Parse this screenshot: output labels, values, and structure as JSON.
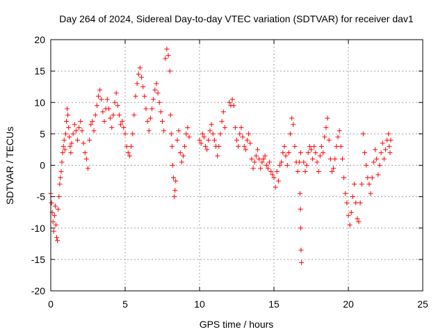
{
  "chart_data": {
    "type": "scatter",
    "title": "Day 264 of 2024, Sidereal Day-to-day VTEC variation (SDTVAR) for receiver dav1",
    "xlabel": "GPS time / hours",
    "ylabel": "SDTVAR / TECUs",
    "xlim": [
      0,
      25
    ],
    "ylim": [
      -20,
      20
    ],
    "xticks": [
      0,
      5,
      10,
      15,
      20,
      25
    ],
    "yticks": [
      -20,
      -15,
      -10,
      -5,
      0,
      5,
      10,
      15,
      20
    ],
    "xtick_labels": [
      "0",
      "5",
      "10",
      "15",
      "20",
      "25"
    ],
    "ytick_labels": [
      "-20",
      "-15",
      "-10",
      "-5",
      "0",
      "5",
      "10",
      "15",
      "20"
    ],
    "grid": true,
    "marker": "plus",
    "marker_color": "#ff0000",
    "series": [
      {
        "name": "dav1",
        "points": [
          [
            0.0,
            -4.5
          ],
          [
            0.05,
            -6.0
          ],
          [
            0.1,
            -7.5
          ],
          [
            0.15,
            -9.0
          ],
          [
            0.2,
            -10.5
          ],
          [
            0.25,
            -8.0
          ],
          [
            0.3,
            -6.5
          ],
          [
            0.35,
            -9.5
          ],
          [
            0.4,
            -11.5
          ],
          [
            0.45,
            -12.0
          ],
          [
            0.5,
            -7.0
          ],
          [
            0.55,
            -5.0
          ],
          [
            0.6,
            -3.0
          ],
          [
            0.65,
            -2.0
          ],
          [
            0.7,
            -1.0
          ],
          [
            0.75,
            0.5
          ],
          [
            0.8,
            2.0
          ],
          [
            0.85,
            3.0
          ],
          [
            0.9,
            4.0
          ],
          [
            0.95,
            2.5
          ],
          [
            1.0,
            5.0
          ],
          [
            1.05,
            7.0
          ],
          [
            1.1,
            9.0
          ],
          [
            1.15,
            8.0
          ],
          [
            1.2,
            6.0
          ],
          [
            1.25,
            4.5
          ],
          [
            1.3,
            3.0
          ],
          [
            1.35,
            2.0
          ],
          [
            1.4,
            3.5
          ],
          [
            1.5,
            5.0
          ],
          [
            1.6,
            6.5
          ],
          [
            1.7,
            5.5
          ],
          [
            1.8,
            4.0
          ],
          [
            1.9,
            6.0
          ],
          [
            2.0,
            7.0
          ],
          [
            2.1,
            5.5
          ],
          [
            2.2,
            3.5
          ],
          [
            2.3,
            2.0
          ],
          [
            2.4,
            1.0
          ],
          [
            2.5,
            -0.5
          ],
          [
            2.6,
            4.0
          ],
          [
            2.7,
            6.5
          ],
          [
            2.8,
            7.0
          ],
          [
            2.9,
            5.5
          ],
          [
            3.0,
            8.0
          ],
          [
            3.1,
            9.5
          ],
          [
            3.2,
            11.0
          ],
          [
            3.3,
            12.0
          ],
          [
            3.4,
            10.5
          ],
          [
            3.5,
            8.5
          ],
          [
            3.6,
            7.0
          ],
          [
            3.7,
            9.0
          ],
          [
            3.8,
            10.5
          ],
          [
            3.9,
            9.0
          ],
          [
            4.0,
            7.5
          ],
          [
            4.1,
            6.0
          ],
          [
            4.2,
            8.0
          ],
          [
            4.3,
            10.0
          ],
          [
            4.4,
            11.5
          ],
          [
            4.5,
            9.5
          ],
          [
            4.6,
            8.0
          ],
          [
            4.7,
            6.5
          ],
          [
            4.8,
            7.0
          ],
          [
            4.9,
            6.0
          ],
          [
            5.0,
            5.0
          ],
          [
            5.1,
            3.0
          ],
          [
            5.2,
            2.0
          ],
          [
            5.3,
            1.5
          ],
          [
            5.4,
            3.0
          ],
          [
            5.5,
            5.0
          ],
          [
            5.6,
            8.0
          ],
          [
            5.7,
            11.0
          ],
          [
            5.8,
            13.0
          ],
          [
            5.9,
            14.5
          ],
          [
            6.0,
            15.5
          ],
          [
            6.1,
            14.0
          ],
          [
            6.2,
            12.5
          ],
          [
            6.3,
            11.0
          ],
          [
            6.4,
            9.0
          ],
          [
            6.5,
            7.0
          ],
          [
            6.6,
            5.5
          ],
          [
            6.7,
            7.5
          ],
          [
            6.8,
            9.0
          ],
          [
            6.9,
            10.5
          ],
          [
            7.0,
            12.0
          ],
          [
            7.1,
            13.0
          ],
          [
            7.2,
            11.5
          ],
          [
            7.3,
            10.0
          ],
          [
            7.4,
            8.5
          ],
          [
            7.5,
            7.0
          ],
          [
            7.6,
            5.5
          ],
          [
            7.7,
            17.0
          ],
          [
            7.8,
            18.5
          ],
          [
            7.9,
            17.5
          ],
          [
            8.0,
            15.0
          ],
          [
            8.05,
            8.0
          ],
          [
            8.1,
            5.0
          ],
          [
            8.15,
            3.0
          ],
          [
            8.2,
            0.0
          ],
          [
            8.25,
            -2.0
          ],
          [
            8.3,
            -5.0
          ],
          [
            8.35,
            -4.0
          ],
          [
            8.4,
            -2.5
          ],
          [
            8.5,
            4.0
          ],
          [
            8.6,
            5.5
          ],
          [
            8.7,
            2.0
          ],
          [
            8.8,
            0.5
          ],
          [
            8.9,
            1.5
          ],
          [
            9.0,
            3.0
          ],
          [
            9.1,
            5.0
          ],
          [
            9.2,
            6.0
          ],
          [
            9.3,
            4.5
          ],
          [
            10.0,
            4.0
          ],
          [
            10.1,
            3.5
          ],
          [
            10.2,
            5.0
          ],
          [
            10.3,
            4.5
          ],
          [
            10.4,
            3.0
          ],
          [
            10.5,
            2.5
          ],
          [
            10.6,
            4.0
          ],
          [
            10.7,
            5.5
          ],
          [
            10.8,
            6.5
          ],
          [
            10.9,
            5.0
          ],
          [
            11.0,
            4.0
          ],
          [
            11.1,
            3.0
          ],
          [
            11.2,
            1.5
          ],
          [
            11.3,
            3.0
          ],
          [
            11.4,
            5.0
          ],
          [
            11.5,
            7.0
          ],
          [
            11.6,
            8.5
          ],
          [
            11.7,
            6.0
          ],
          [
            12.0,
            10.0
          ],
          [
            12.1,
            9.5
          ],
          [
            12.2,
            10.5
          ],
          [
            12.3,
            9.5
          ],
          [
            12.4,
            6.0
          ],
          [
            12.5,
            4.0
          ],
          [
            12.6,
            3.0
          ],
          [
            12.7,
            5.0
          ],
          [
            12.8,
            6.0
          ],
          [
            12.9,
            4.5
          ],
          [
            13.0,
            3.0
          ],
          [
            13.1,
            2.5
          ],
          [
            13.2,
            4.0
          ],
          [
            13.3,
            5.0
          ],
          [
            13.4,
            3.5
          ],
          [
            13.5,
            1.0
          ],
          [
            13.6,
            -0.5
          ],
          [
            13.7,
            0.5
          ],
          [
            13.8,
            1.5
          ],
          [
            13.9,
            2.5
          ],
          [
            14.0,
            1.0
          ],
          [
            14.1,
            -0.5
          ],
          [
            14.2,
            0.5
          ],
          [
            14.3,
            1.0
          ],
          [
            14.4,
            1.5
          ],
          [
            14.5,
            0.0
          ],
          [
            14.6,
            -0.5
          ],
          [
            14.7,
            0.5
          ],
          [
            14.8,
            -1.0
          ],
          [
            14.9,
            -1.5
          ],
          [
            15.0,
            -2.0
          ],
          [
            15.1,
            -3.5
          ],
          [
            15.2,
            -1.0
          ],
          [
            15.3,
            -2.5
          ],
          [
            15.4,
            0.0
          ],
          [
            15.5,
            0.5
          ],
          [
            15.6,
            2.0
          ],
          [
            15.7,
            3.0
          ],
          [
            15.8,
            1.5
          ],
          [
            15.9,
            0.0
          ],
          [
            16.0,
            2.0
          ],
          [
            16.1,
            5.0
          ],
          [
            16.2,
            7.5
          ],
          [
            16.3,
            6.5
          ],
          [
            16.4,
            3.0
          ],
          [
            16.5,
            0.5
          ],
          [
            16.6,
            -1.0
          ],
          [
            16.7,
            0.5
          ],
          [
            16.8,
            2.0
          ],
          [
            16.75,
            -4.5
          ],
          [
            16.78,
            -7.0
          ],
          [
            16.8,
            -10.0
          ],
          [
            16.82,
            -13.5
          ],
          [
            16.85,
            -15.5
          ],
          [
            17.0,
            0.5
          ],
          [
            17.1,
            -1.0
          ],
          [
            17.2,
            0.0
          ],
          [
            17.3,
            2.0
          ],
          [
            17.4,
            3.0
          ],
          [
            17.5,
            2.5
          ],
          [
            17.6,
            1.0
          ],
          [
            17.7,
            3.0
          ],
          [
            17.8,
            2.0
          ],
          [
            17.9,
            0.5
          ],
          [
            18.0,
            -1.0
          ],
          [
            18.1,
            1.5
          ],
          [
            18.2,
            3.0
          ],
          [
            18.3,
            2.0
          ],
          [
            18.4,
            4.5
          ],
          [
            18.5,
            6.0
          ],
          [
            18.6,
            7.5
          ],
          [
            18.7,
            4.0
          ],
          [
            18.8,
            1.0
          ],
          [
            18.9,
            -1.0
          ],
          [
            19.0,
            -0.5
          ],
          [
            19.1,
            1.0
          ],
          [
            19.2,
            3.0
          ],
          [
            19.3,
            4.5
          ],
          [
            19.4,
            5.5
          ],
          [
            19.5,
            3.0
          ],
          [
            19.6,
            1.0
          ],
          [
            19.7,
            -2.0
          ],
          [
            19.8,
            -4.5
          ],
          [
            19.9,
            -6.0
          ],
          [
            20.0,
            -8.0
          ],
          [
            20.1,
            -9.5
          ],
          [
            20.2,
            -7.5
          ],
          [
            20.3,
            -5.0
          ],
          [
            20.4,
            -3.0
          ],
          [
            20.5,
            -6.0
          ],
          [
            20.6,
            -8.5
          ],
          [
            20.7,
            -9.0
          ],
          [
            20.8,
            -6.0
          ],
          [
            20.9,
            -3.0
          ],
          [
            21.0,
            5.0
          ],
          [
            21.1,
            2.0
          ],
          [
            21.2,
            0.0
          ],
          [
            21.3,
            -2.0
          ],
          [
            21.4,
            -3.0
          ],
          [
            21.5,
            -4.5
          ],
          [
            21.6,
            -2.0
          ],
          [
            21.7,
            0.5
          ],
          [
            21.8,
            2.5
          ],
          [
            21.9,
            1.0
          ],
          [
            22.0,
            -1.5
          ],
          [
            22.1,
            0.0
          ],
          [
            22.2,
            2.0
          ],
          [
            22.3,
            3.5
          ],
          [
            22.4,
            1.0
          ],
          [
            22.5,
            2.5
          ],
          [
            22.6,
            4.0
          ],
          [
            22.7,
            5.0
          ],
          [
            22.75,
            3.0
          ],
          [
            22.8,
            2.0
          ],
          [
            22.85,
            4.0
          ]
        ]
      }
    ]
  }
}
